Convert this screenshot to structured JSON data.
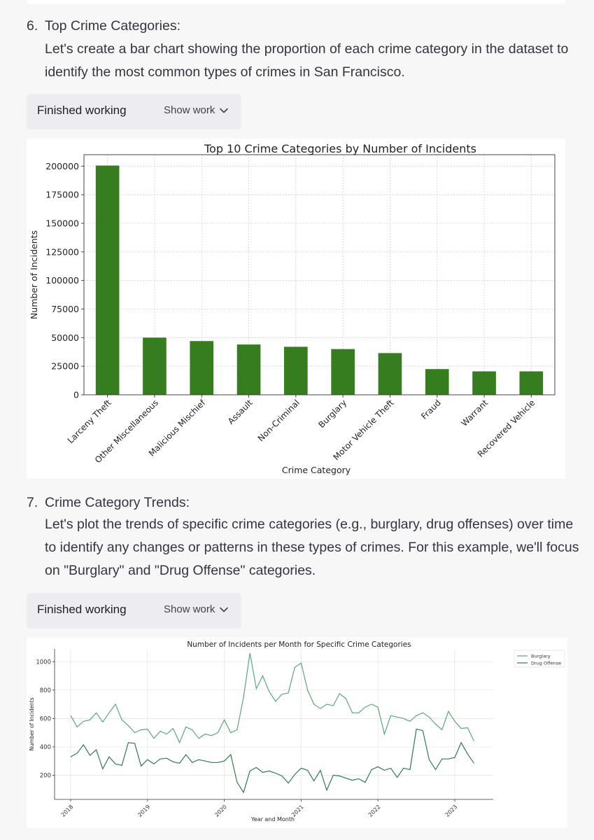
{
  "section6": {
    "number": "6.",
    "title": "Top Crime Categories:",
    "lines": [
      "Let's create a bar chart showing the proportion of each crime category in the dataset to",
      "identify the most common types of crimes in San Francisco."
    ],
    "status_label": "Finished working",
    "show_work_label": "Show work"
  },
  "section7": {
    "number": "7.",
    "title": "Crime Category Trends:",
    "lines": [
      "Let's plot the trends of specific crime categories (e.g., burglary, drug offenses) over time",
      "to identify any changes or patterns in these types of crimes. For this example, we'll focus",
      "on \"Burglary\" and \"Drug Offense\" categories."
    ],
    "status_label": "Finished working",
    "show_work_label": "Show work"
  },
  "icons": {
    "expand": "chevron-down-icon"
  },
  "chart_data": [
    {
      "type": "bar",
      "title": "Top 10 Crime Categories by Number of Incidents",
      "xlabel": "Crime Category",
      "ylabel": "Number of Incidents",
      "categories": [
        "Larceny Theft",
        "Other Miscellaneous",
        "Malicious Mischief",
        "Assault",
        "Non-Criminal",
        "Burglary",
        "Motor Vehicle Theft",
        "Fraud",
        "Warrant",
        "Recovered Vehicle"
      ],
      "values": [
        200500,
        50000,
        47000,
        44000,
        42000,
        40000,
        36500,
        22500,
        20500,
        20500
      ],
      "ylim": [
        0,
        210000
      ],
      "yticks": [
        0,
        25000,
        50000,
        75000,
        100000,
        125000,
        150000,
        175000,
        200000
      ],
      "grid": true,
      "bar_color": "#367d20"
    },
    {
      "type": "line",
      "title": "Number of Incidents per Month for Specific Crime Categories",
      "xlabel": "Year and Month",
      "ylabel": "Number of Incidents",
      "xticks": [
        "2018",
        "2019",
        "2020",
        "2021",
        "2022",
        "2023"
      ],
      "yticks": [
        200,
        400,
        600,
        800,
        1000
      ],
      "ylim": [
        30,
        1090
      ],
      "legend_position": "outside-top-right",
      "grid": true,
      "x_start": "2018-01",
      "series": [
        {
          "name": "Burglary",
          "color": "#5aa77a",
          "values": [
            620,
            540,
            580,
            590,
            640,
            575,
            640,
            700,
            590,
            550,
            500,
            520,
            525,
            460,
            510,
            490,
            530,
            430,
            540,
            520,
            460,
            490,
            480,
            500,
            590,
            500,
            520,
            750,
            1060,
            810,
            900,
            790,
            720,
            770,
            780,
            960,
            990,
            800,
            700,
            670,
            700,
            690,
            775,
            740,
            640,
            640,
            680,
            700,
            680,
            490,
            620,
            610,
            600,
            580,
            620,
            640,
            610,
            560,
            520,
            650,
            580,
            530,
            535,
            440
          ]
        },
        {
          "name": "Drug Offense",
          "color": "#2f7a52",
          "values": [
            330,
            355,
            415,
            340,
            380,
            245,
            330,
            280,
            270,
            430,
            425,
            265,
            310,
            280,
            315,
            320,
            295,
            285,
            345,
            290,
            310,
            300,
            290,
            290,
            300,
            345,
            150,
            80,
            230,
            255,
            220,
            230,
            215,
            195,
            145,
            205,
            250,
            235,
            160,
            235,
            95,
            200,
            195,
            180,
            165,
            175,
            150,
            240,
            260,
            235,
            250,
            185,
            250,
            240,
            525,
            515,
            310,
            240,
            315,
            315,
            325,
            430,
            350,
            285
          ]
        }
      ]
    }
  ]
}
